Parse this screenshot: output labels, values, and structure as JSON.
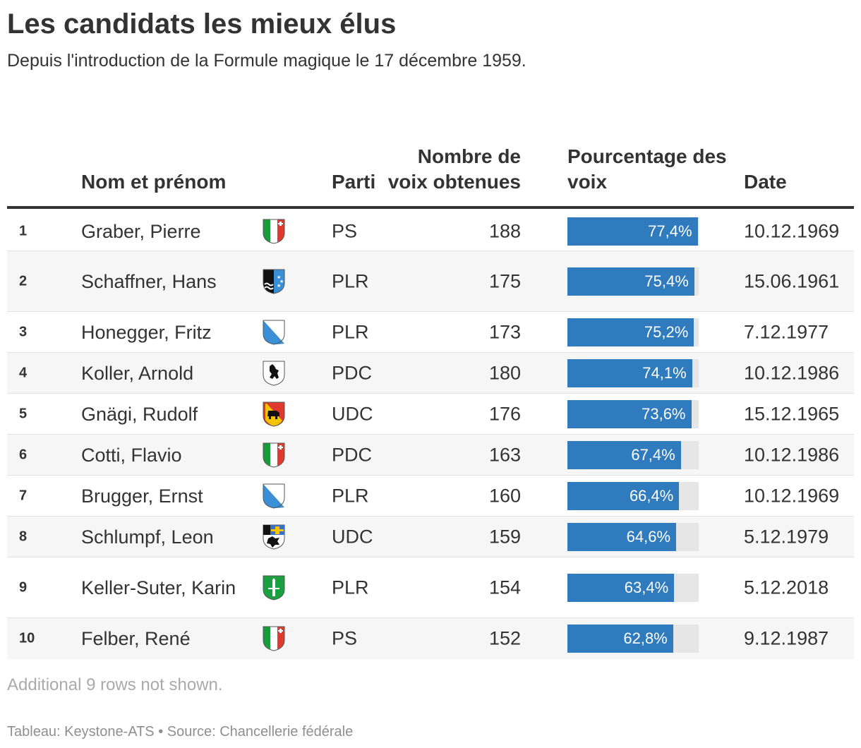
{
  "title": "Les candidats les mieux élus",
  "subtitle": "Depuis l'introduction de la Formule magique le 17 décembre 1959.",
  "columns": {
    "name": "Nom et prénom",
    "party": "Parti",
    "votes": "Nombre de voix obtenues",
    "percent": "Pourcentage des voix",
    "date": "Date"
  },
  "chart_data": {
    "type": "table",
    "rows": [
      {
        "rank": "1",
        "name": "Graber, Pierre",
        "flag": "ticino-coat-of-arms-icon",
        "party": "PS",
        "votes": "188",
        "percent_label": "77,4%",
        "percent": 77.4,
        "date": "10.12.1969"
      },
      {
        "rank": "2",
        "name": "Schaffner, Hans",
        "flag": "aargau-coat-of-arms-icon",
        "party": "PLR",
        "votes": "175",
        "percent_label": "75,4%",
        "percent": 75.4,
        "date": "15.06.1961"
      },
      {
        "rank": "3",
        "name": "Honegger, Fritz",
        "flag": "zurich-coat-of-arms-icon",
        "party": "PLR",
        "votes": "173",
        "percent_label": "75,2%",
        "percent": 75.2,
        "date": "7.12.1977"
      },
      {
        "rank": "4",
        "name": "Koller, Arnold",
        "flag": "appenzell-innerrhoden-coat-of-arms-icon",
        "party": "PDC",
        "votes": "180",
        "percent_label": "74,1%",
        "percent": 74.1,
        "date": "10.12.1986"
      },
      {
        "rank": "5",
        "name": "Gnägi, Rudolf",
        "flag": "bern-coat-of-arms-icon",
        "party": "UDC",
        "votes": "176",
        "percent_label": "73,6%",
        "percent": 73.6,
        "date": "15.12.1965"
      },
      {
        "rank": "6",
        "name": "Cotti, Flavio",
        "flag": "ticino-coat-of-arms-icon",
        "party": "PDC",
        "votes": "163",
        "percent_label": "67,4%",
        "percent": 67.4,
        "date": "10.12.1986"
      },
      {
        "rank": "7",
        "name": "Brugger, Ernst",
        "flag": "zurich-coat-of-arms-icon",
        "party": "PLR",
        "votes": "160",
        "percent_label": "66,4%",
        "percent": 66.4,
        "date": "10.12.1969"
      },
      {
        "rank": "8",
        "name": "Schlumpf, Leon",
        "flag": "graubuenden-coat-of-arms-icon",
        "party": "UDC",
        "votes": "159",
        "percent_label": "64,6%",
        "percent": 64.6,
        "date": "5.12.1979"
      },
      {
        "rank": "9",
        "name": "Keller-Suter, Karin",
        "flag": "st-gallen-coat-of-arms-icon",
        "party": "PLR",
        "votes": "154",
        "percent_label": "63,4%",
        "percent": 63.4,
        "date": "5.12.2018"
      },
      {
        "rank": "10",
        "name": "Felber, René",
        "flag": "neuchatel-coat-of-arms-icon",
        "party": "PS",
        "votes": "152",
        "percent_label": "62,8%",
        "percent": 62.8,
        "date": "9.12.1987"
      }
    ],
    "bar_max": 78,
    "bar_color": "#2f7bbd",
    "bar_track_color": "#e6e6e6"
  },
  "note": "Additional 9 rows not shown.",
  "footer": "Tableau: Keystone-ATS • Source: Chancellerie fédérale"
}
